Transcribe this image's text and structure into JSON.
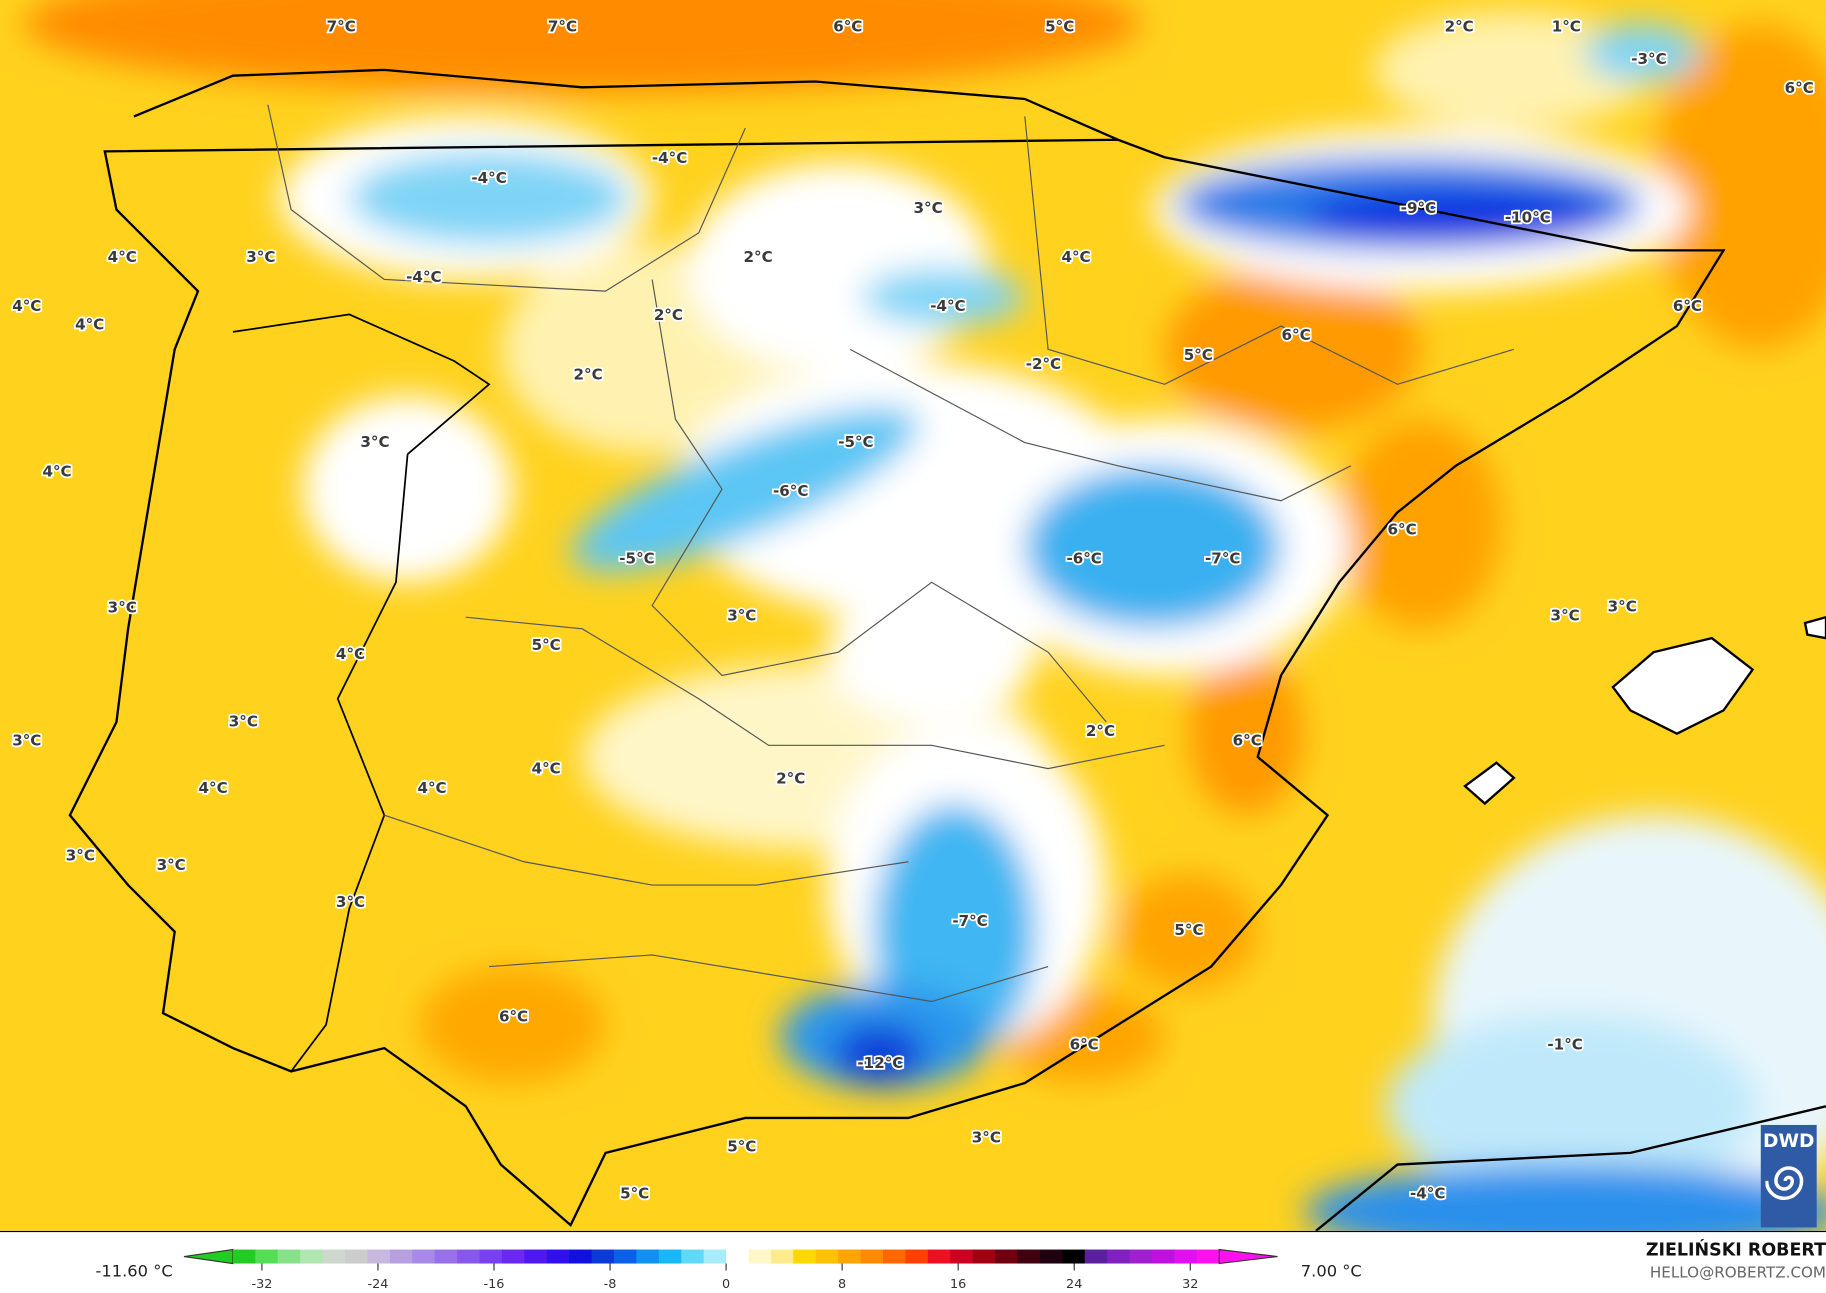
{
  "map": {
    "variable_unit": "°C",
    "labels": [
      "7°C",
      "7°C",
      "6°C",
      "5°C",
      "2°C",
      "1°C",
      "-3°C",
      "6°C",
      "-4°C",
      "-4°C",
      "-9°C",
      "-10°C",
      "3°C",
      "4°C",
      "3°C",
      "2°C",
      "4°C",
      "-4°C",
      "-4°C",
      "4°C",
      "4°C",
      "2°C",
      "6°C",
      "6°C",
      "5°C",
      "2°C",
      "-2°C",
      "3°C",
      "-5°C",
      "4°C",
      "-6°C",
      "6°C",
      "-6°C",
      "-7°C",
      "-5°C",
      "3°C",
      "3°C",
      "3°C",
      "3°C",
      "5°C",
      "4°C",
      "3°C",
      "3°C",
      "2°C",
      "6°C",
      "4°C",
      "2°C",
      "4°C",
      "4°C",
      "3°C",
      "3°C",
      "3°C",
      "-7°C",
      "5°C",
      "6°C",
      "6°C",
      "-1°C",
      "-12°C",
      "3°C",
      "5°C",
      "5°C",
      "-4°C"
    ]
  },
  "legend": {
    "min_label": "-11.60 °C",
    "max_label": "7.00 °C",
    "ticks": [
      "-32",
      "-24",
      "-16",
      "-8",
      "0",
      "8",
      "16",
      "24",
      "32"
    ],
    "range": [
      -34,
      34
    ],
    "colors": [
      "#22cc22",
      "#55dd55",
      "#88e088",
      "#b0e6b0",
      "#cfd8cf",
      "#cccccc",
      "#c8b8e0",
      "#b8a0e0",
      "#a888e8",
      "#9870e8",
      "#8858ec",
      "#7840f0",
      "#6a28f0",
      "#5018f0",
      "#3010f0",
      "#1010e0",
      "#0a3ad8",
      "#0a60e8",
      "#1090f0",
      "#18b8f8",
      "#60d8fa",
      "#a8ecfc",
      "#ffffff",
      "#fff7c8",
      "#ffeb8c",
      "#ffd800",
      "#ffc000",
      "#ffa400",
      "#ff8a00",
      "#ff6800",
      "#ff4000",
      "#ee1020",
      "#cc0020",
      "#a00010",
      "#700010",
      "#400010",
      "#200010",
      "#000000",
      "#5a20a0",
      "#8020c0",
      "#a020d0",
      "#c010e0",
      "#e010f0",
      "#ff10f0"
    ]
  },
  "branding": {
    "author": "ZIELIŃSKI ROBERT",
    "email": "HELLO@ROBERTZ.COM",
    "logo": "DWD"
  }
}
